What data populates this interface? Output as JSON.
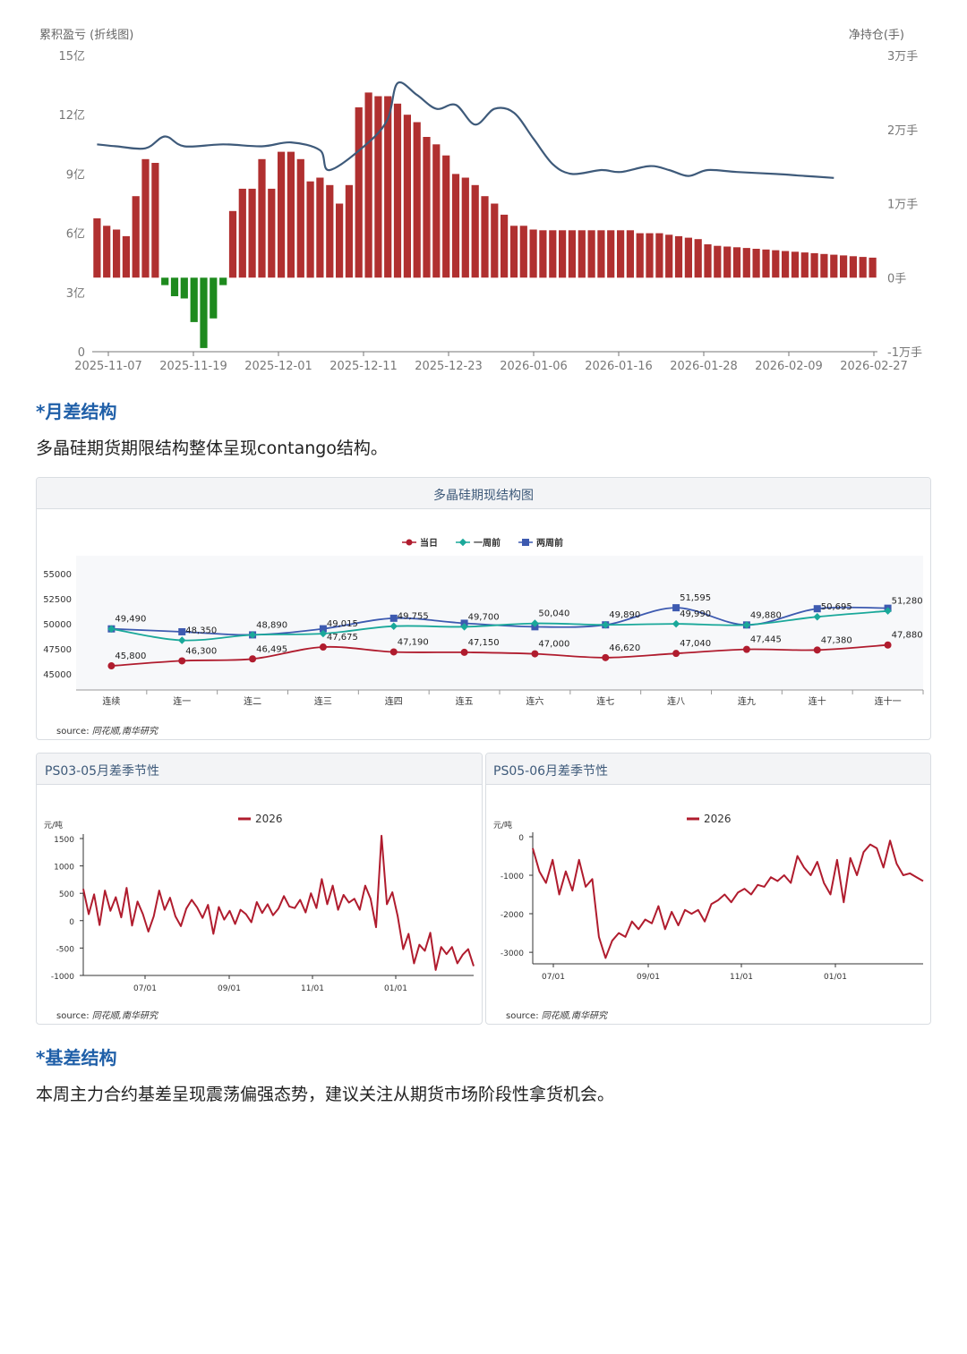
{
  "sections": {
    "month_title": "*月差结构",
    "month_text": "多晶硅期货期限结构整体呈现contango结构。",
    "basis_title": "*基差结构",
    "basis_text": "本周主力合约基差呈现震荡偏强态势，建议关注从期货市场阶段性拿货机会。"
  },
  "colors": {
    "bar_positive": "#b03030",
    "bar_negative": "#1e8a1e",
    "line_position": "#3e5a7a",
    "today": "#b01c2e",
    "week_ago": "#1aa89a",
    "two_weeks_ago": "#3d5ab0",
    "title_blue": "#1f5fa8"
  },
  "chart_data": [
    {
      "type": "bar",
      "title": "",
      "left_axis_title": "累积盈亏 (折线图)",
      "right_axis_title": "净持仓(手)",
      "left_ticks": [
        "15亿",
        "12亿",
        "9亿",
        "6亿",
        "3亿",
        "0"
      ],
      "right_ticks": [
        "3万手",
        "2万手",
        "1万手",
        "0手",
        "-1万手"
      ],
      "x_tick_labels": [
        "2025-11-07",
        "2025-11-19",
        "2025-12-01",
        "2025-12-11",
        "2025-12-23",
        "2026-01-06",
        "2026-01-16",
        "2026-01-28",
        "2026-02-09",
        "2026-02-27"
      ],
      "ylim_position": [
        -10000,
        30000
      ],
      "ylim_pnl": [
        0,
        15
      ],
      "position_series": {
        "name": "净持仓",
        "values": [
          8000,
          7000,
          6500,
          5600,
          11000,
          16000,
          15500,
          -1000,
          -2500,
          -2800,
          -6000,
          -9500,
          -5500,
          -1000,
          9000,
          12000,
          12000,
          16000,
          12000,
          17000,
          17000,
          16000,
          13000,
          13500,
          12500,
          10000,
          12500,
          23000,
          25000,
          24500,
          24500,
          23500,
          22000,
          21000,
          19000,
          18000,
          16500,
          14000,
          13500,
          12500,
          11000,
          10000,
          8500,
          7000,
          7000,
          6500,
          6400,
          6400,
          6400,
          6400,
          6400,
          6400,
          6400,
          6400,
          6400,
          6400,
          6000,
          6000,
          6000,
          5800,
          5600,
          5400,
          5200,
          4500,
          4300,
          4200,
          4100,
          4000,
          3900,
          3800,
          3700,
          3600,
          3500,
          3400,
          3300,
          3200,
          3100,
          3000,
          2900,
          2800,
          2700
        ]
      },
      "pnl_series": {
        "name": "累积盈亏",
        "points": [
          [
            0,
            10.5
          ],
          [
            2,
            10.4
          ],
          [
            5,
            10.3
          ],
          [
            7,
            10.9
          ],
          [
            9,
            10.4
          ],
          [
            13,
            10.5
          ],
          [
            17,
            10.4
          ],
          [
            20,
            10.6
          ],
          [
            23,
            10.2
          ],
          [
            24,
            9.2
          ],
          [
            28,
            10.6
          ],
          [
            30,
            11.8
          ],
          [
            31,
            13.6
          ],
          [
            33,
            13.0
          ],
          [
            35,
            12.3
          ],
          [
            37,
            12.5
          ],
          [
            39,
            11.5
          ],
          [
            41,
            12.3
          ],
          [
            43,
            12.1
          ],
          [
            45,
            10.8
          ],
          [
            47,
            9.5
          ],
          [
            49,
            9.0
          ],
          [
            52,
            9.2
          ],
          [
            54,
            9.1
          ],
          [
            57,
            9.4
          ],
          [
            59,
            9.2
          ],
          [
            61,
            8.9
          ],
          [
            63,
            9.2
          ],
          [
            66,
            9.1
          ],
          [
            70,
            9.0
          ],
          [
            73,
            8.9
          ],
          [
            76,
            8.8
          ]
        ]
      }
    },
    {
      "type": "line",
      "title": "多晶硅期现结构图",
      "categories": [
        "连续",
        "连一",
        "连二",
        "连三",
        "连四",
        "连五",
        "连六",
        "连七",
        "连八",
        "连九",
        "连十",
        "连十一"
      ],
      "y_ticks": [
        "55000",
        "52500",
        "50000",
        "47500",
        "45000"
      ],
      "ylim": [
        45000,
        55000
      ],
      "series": [
        {
          "name": "当日",
          "values": [
            45800,
            46300,
            46495,
            47675,
            47190,
            47150,
            47000,
            46620,
            47040,
            47445,
            47380,
            47880
          ],
          "labels": [
            "45,800",
            "46,300",
            "46,495",
            "47,675",
            "47,190",
            "47,150",
            "47,000",
            "46,620",
            "47,040",
            "47,445",
            "47,380",
            "47,880"
          ]
        },
        {
          "name": "一周前",
          "values": [
            49490,
            48350,
            48890,
            49015,
            49755,
            49700,
            50040,
            49890,
            49990,
            49880,
            50695,
            51280
          ],
          "labels": [
            "49,490",
            "48,350",
            "48,890",
            "49,015",
            "49,755",
            "49,700",
            "50,040",
            "49,890",
            "49,990",
            "49,880",
            "50,695",
            "51,280"
          ]
        },
        {
          "name": "两周前",
          "values": [
            49490,
            49200,
            48890,
            49500,
            50550,
            50050,
            49700,
            49890,
            51595,
            49880,
            51500,
            51550
          ],
          "labels": [
            "",
            "",
            "",
            "",
            "",
            "",
            "",
            "",
            "51,595",
            "",
            "",
            ""
          ]
        }
      ],
      "source_label": "source:",
      "source_text": "同花顺,南华研究"
    },
    {
      "type": "line",
      "title": "PS03-05月差季节性",
      "unit": "元/吨",
      "legend": [
        "2026"
      ],
      "y_ticks": [
        "1500",
        "1000",
        "500",
        "0",
        "-500",
        "-1000"
      ],
      "ylim": [
        -1000,
        1500
      ],
      "x_tick_labels": [
        "07/01",
        "09/01",
        "11/01",
        "01/01"
      ],
      "series": [
        {
          "name": "2026",
          "values": [
            580,
            120,
            480,
            -80,
            550,
            180,
            430,
            60,
            600,
            -90,
            350,
            120,
            -200,
            80,
            550,
            200,
            420,
            80,
            -100,
            220,
            380,
            240,
            50,
            290,
            -240,
            250,
            20,
            180,
            -60,
            200,
            120,
            -30,
            340,
            140,
            300,
            100,
            220,
            450,
            260,
            230,
            380,
            150,
            500,
            230,
            760,
            300,
            640,
            200,
            470,
            330,
            400,
            200,
            640,
            400,
            -120,
            1550,
            300,
            520,
            80,
            -520,
            -240,
            -780,
            -440,
            -550,
            -220,
            -900,
            -480,
            -610,
            -480,
            -780,
            -620,
            -520,
            -830
          ]
        }
      ],
      "source_label": "source:",
      "source_text": "同花顺,南华研究"
    },
    {
      "type": "line",
      "title": "PS05-06月差季节性",
      "unit": "元/吨",
      "legend": [
        "2026"
      ],
      "y_ticks": [
        "0",
        "-1000",
        "-2000",
        "-3000"
      ],
      "ylim": [
        -3300,
        0
      ],
      "x_tick_labels": [
        "07/01",
        "09/01",
        "11/01",
        "01/01"
      ],
      "series": [
        {
          "name": "2026",
          "values": [
            -300,
            -900,
            -1200,
            -600,
            -1500,
            -900,
            -1400,
            -600,
            -1300,
            -1100,
            -2600,
            -3150,
            -2700,
            -2500,
            -2600,
            -2200,
            -2400,
            -2150,
            -2250,
            -1800,
            -2400,
            -1950,
            -2300,
            -1900,
            -2000,
            -1900,
            -2200,
            -1750,
            -1650,
            -1500,
            -1700,
            -1450,
            -1350,
            -1500,
            -1250,
            -1300,
            -1050,
            -1150,
            -1000,
            -1200,
            -500,
            -800,
            -1000,
            -650,
            -1200,
            -1500,
            -600,
            -1700,
            -550,
            -1000,
            -400,
            -200,
            -300,
            -800,
            -100,
            -700,
            -1000,
            -950,
            -1050,
            -1150
          ]
        }
      ],
      "source_label": "source:",
      "source_text": "同花顺,南华研究"
    }
  ]
}
